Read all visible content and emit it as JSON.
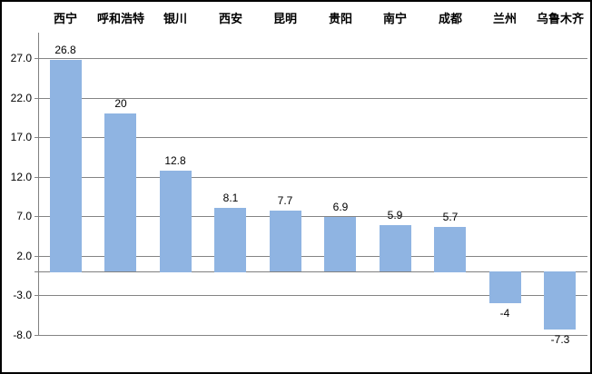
{
  "chart_data": {
    "type": "bar",
    "title": "",
    "categories": [
      "西宁",
      "呼和浩特",
      "银川",
      "西安",
      "昆明",
      "贵阳",
      "南宁",
      "成都",
      "兰州",
      "乌鲁木齐"
    ],
    "values": [
      26.8,
      20,
      12.8,
      8.1,
      7.7,
      6.9,
      5.9,
      5.7,
      -4,
      -7.3
    ],
    "value_labels": [
      "26.8",
      "20",
      "12.8",
      "8.1",
      "7.7",
      "6.9",
      "5.9",
      "5.7",
      "-4",
      "-7.3"
    ],
    "series_name": "",
    "xlabel": "",
    "ylabel": "",
    "y_axis": {
      "min": -8,
      "max": 30,
      "major_unit": 5,
      "ticks": [
        27,
        22,
        17,
        12,
        7,
        2,
        -3,
        -8
      ],
      "tick_labels": [
        "27.0",
        "22.0",
        "17.0",
        "12.0",
        "7.0",
        "2.0",
        "-3.0",
        "-8.0"
      ],
      "grid": true
    },
    "legend_position": "none",
    "category_labels_position": "top",
    "colors": {
      "bar_fill": "#8FB4E2",
      "gridline": "#848484",
      "axis_line": "#808080",
      "text": "#000000",
      "background": "#FFFFFF",
      "frame_border": "#000000"
    }
  }
}
